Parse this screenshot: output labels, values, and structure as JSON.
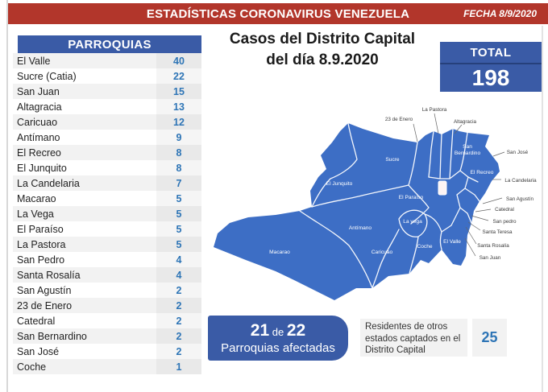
{
  "banner": {
    "title": "ESTADÍSTICAS CORONAVIRUS VENEZUELA",
    "date": "FECHA 8/9/2020"
  },
  "table": {
    "header": "PARROQUIAS"
  },
  "chart_data": {
    "type": "table",
    "title": "Casos del Distrito Capital del día 8.9.2020",
    "categories": [
      "El Valle",
      "Sucre (Catia)",
      "San Juan",
      "Altagracia",
      "Caricuao",
      "Antímano",
      "El Recreo",
      "El Junquito",
      "La Candelaria",
      "Macarao",
      "La Vega",
      "El Paraíso",
      "La Pastora",
      "San Pedro",
      "Santa Rosalía",
      "San Agustín",
      "23 de Enero",
      "Catedral",
      "San Bernardino",
      "San José",
      "Coche"
    ],
    "values": [
      40,
      22,
      15,
      13,
      12,
      9,
      8,
      8,
      7,
      5,
      5,
      5,
      5,
      4,
      4,
      2,
      2,
      2,
      2,
      2,
      1
    ],
    "total": 198
  },
  "main_title": {
    "line1": "Casos del Distrito Capital",
    "line2": "del día 8.9.2020"
  },
  "total": {
    "label": "TOTAL",
    "value": "198"
  },
  "map": {
    "inside_labels": {
      "sucre": "Sucre",
      "el_junquito": "El Junquito",
      "san_bernardino_line1": "San",
      "san_bernardino_line2": "Bernardino",
      "el_recreo": "El Recreo",
      "el_paraiso": "El Paraíso",
      "antimano": "Antímano",
      "la_vega": "La vega",
      "macarao": "Macarao",
      "caricuao": "Caricuao",
      "coche": "Coche",
      "el_valle": "El Valle"
    },
    "callout_labels": {
      "veintitres_de_enero": "23 de Enero",
      "la_pastora": "La Pastora",
      "altagracia": "Altagracia",
      "san_jose": "San José",
      "la_candelaria": "La Candelaria",
      "san_agustin": "San Agustín",
      "catedral": "Catedral",
      "san_pedro": "San pedro",
      "santa_teresa": "Santa Teresa",
      "santa_rosalia": "Santa Rosalía",
      "san_juan": "San Juan"
    }
  },
  "affected": {
    "count": "21",
    "connector": "de",
    "total": "22",
    "caption": "Parroquias afectadas"
  },
  "residents": {
    "text": "Residentes de otros estados captados en el Distrito Capital",
    "value": "25"
  },
  "colors": {
    "banner_red": "#B2362B",
    "panel_navy": "#3A5BA6",
    "map_blue": "#3D6EC5",
    "number_blue": "#2E75B6",
    "stripe_gray": "#F2F2F2"
  }
}
